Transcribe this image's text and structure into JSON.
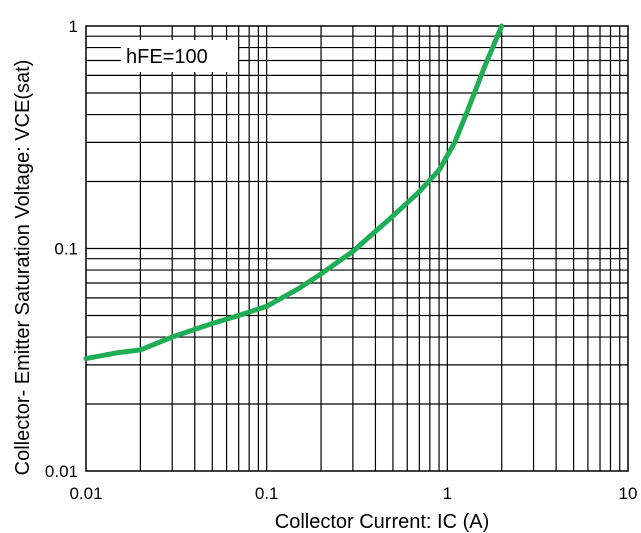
{
  "chart_data": {
    "type": "line",
    "xlabel": "Collector Current: IC (A)",
    "ylabel": "Collector- Emitter Saturation Voltage: VCE(sat)",
    "x_scale": "log",
    "y_scale": "log",
    "xlim": [
      0.01,
      10
    ],
    "ylim": [
      0.01,
      1
    ],
    "x_ticks": [
      "0.01",
      "0.1",
      "1",
      "10"
    ],
    "y_ticks": [
      "0.01",
      "0.1",
      "1"
    ],
    "grid": true,
    "annotation": "hFE=100",
    "line_color": "#1fae55",
    "series": [
      {
        "x": [
          0.01,
          0.015,
          0.02,
          0.03,
          0.05,
          0.07,
          0.1,
          0.15,
          0.2,
          0.3,
          0.5,
          0.7,
          0.9,
          1.1,
          1.3,
          1.6,
          2.0
        ],
        "y": [
          0.032,
          0.034,
          0.035,
          0.04,
          0.046,
          0.05,
          0.055,
          0.066,
          0.077,
          0.097,
          0.14,
          0.18,
          0.225,
          0.3,
          0.42,
          0.65,
          1.0
        ]
      }
    ]
  }
}
